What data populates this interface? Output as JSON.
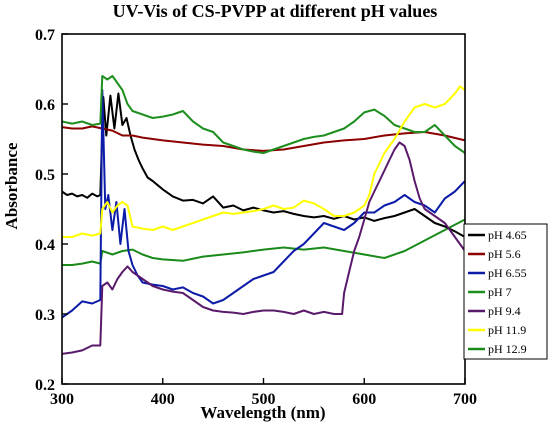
{
  "chart_data": {
    "type": "line",
    "title": "UV-Vis of CS-PVPP at different pH values",
    "xlabel": "Wavelength (nm)",
    "ylabel": "Absorbance",
    "xlim": [
      300,
      700
    ],
    "ylim": [
      0.2,
      0.7
    ],
    "xticks": [
      300,
      400,
      500,
      600,
      700
    ],
    "yticks": [
      0.2,
      0.3,
      0.4,
      0.5,
      0.6,
      0.7
    ],
    "legend_position": "right, outside plot area",
    "grid": false,
    "series": [
      {
        "name": "pH 4.65",
        "color": "#000000",
        "points": [
          [
            300,
            0.475
          ],
          [
            305,
            0.47
          ],
          [
            310,
            0.472
          ],
          [
            315,
            0.468
          ],
          [
            320,
            0.47
          ],
          [
            325,
            0.466
          ],
          [
            330,
            0.472
          ],
          [
            335,
            0.468
          ],
          [
            338,
            0.47
          ],
          [
            341,
            0.61
          ],
          [
            344,
            0.555
          ],
          [
            348,
            0.612
          ],
          [
            352,
            0.565
          ],
          [
            356,
            0.615
          ],
          [
            360,
            0.57
          ],
          [
            364,
            0.58
          ],
          [
            368,
            0.555
          ],
          [
            372,
            0.535
          ],
          [
            376,
            0.52
          ],
          [
            380,
            0.508
          ],
          [
            385,
            0.495
          ],
          [
            390,
            0.49
          ],
          [
            395,
            0.484
          ],
          [
            400,
            0.478
          ],
          [
            410,
            0.468
          ],
          [
            420,
            0.462
          ],
          [
            430,
            0.463
          ],
          [
            440,
            0.458
          ],
          [
            450,
            0.468
          ],
          [
            460,
            0.452
          ],
          [
            470,
            0.455
          ],
          [
            480,
            0.448
          ],
          [
            490,
            0.452
          ],
          [
            500,
            0.448
          ],
          [
            510,
            0.445
          ],
          [
            520,
            0.447
          ],
          [
            530,
            0.443
          ],
          [
            540,
            0.44
          ],
          [
            550,
            0.438
          ],
          [
            560,
            0.44
          ],
          [
            570,
            0.436
          ],
          [
            580,
            0.44
          ],
          [
            590,
            0.435
          ],
          [
            600,
            0.438
          ],
          [
            610,
            0.433
          ],
          [
            620,
            0.437
          ],
          [
            630,
            0.44
          ],
          [
            640,
            0.445
          ],
          [
            650,
            0.45
          ],
          [
            660,
            0.44
          ],
          [
            670,
            0.43
          ],
          [
            680,
            0.425
          ],
          [
            690,
            0.418
          ],
          [
            700,
            0.41
          ]
        ]
      },
      {
        "name": "pH 5.6",
        "color": "#8b0000",
        "points": [
          [
            300,
            0.567
          ],
          [
            310,
            0.565
          ],
          [
            320,
            0.565
          ],
          [
            330,
            0.568
          ],
          [
            340,
            0.565
          ],
          [
            350,
            0.562
          ],
          [
            360,
            0.555
          ],
          [
            370,
            0.555
          ],
          [
            380,
            0.552
          ],
          [
            390,
            0.55
          ],
          [
            400,
            0.548
          ],
          [
            420,
            0.545
          ],
          [
            440,
            0.542
          ],
          [
            460,
            0.54
          ],
          [
            480,
            0.535
          ],
          [
            500,
            0.533
          ],
          [
            520,
            0.535
          ],
          [
            540,
            0.54
          ],
          [
            560,
            0.545
          ],
          [
            580,
            0.548
          ],
          [
            600,
            0.55
          ],
          [
            620,
            0.555
          ],
          [
            640,
            0.558
          ],
          [
            660,
            0.56
          ],
          [
            680,
            0.555
          ],
          [
            700,
            0.548
          ]
        ]
      },
      {
        "name": "pH 6.55",
        "color": "#0d1ca8",
        "points": [
          [
            300,
            0.295
          ],
          [
            310,
            0.305
          ],
          [
            320,
            0.318
          ],
          [
            330,
            0.315
          ],
          [
            338,
            0.32
          ],
          [
            340,
            0.62
          ],
          [
            343,
            0.45
          ],
          [
            346,
            0.47
          ],
          [
            350,
            0.42
          ],
          [
            354,
            0.46
          ],
          [
            358,
            0.4
          ],
          [
            362,
            0.45
          ],
          [
            366,
            0.39
          ],
          [
            370,
            0.37
          ],
          [
            375,
            0.355
          ],
          [
            380,
            0.345
          ],
          [
            390,
            0.342
          ],
          [
            400,
            0.34
          ],
          [
            410,
            0.335
          ],
          [
            420,
            0.338
          ],
          [
            430,
            0.33
          ],
          [
            440,
            0.325
          ],
          [
            450,
            0.315
          ],
          [
            460,
            0.32
          ],
          [
            470,
            0.33
          ],
          [
            480,
            0.34
          ],
          [
            490,
            0.35
          ],
          [
            500,
            0.355
          ],
          [
            510,
            0.36
          ],
          [
            520,
            0.375
          ],
          [
            530,
            0.39
          ],
          [
            540,
            0.4
          ],
          [
            550,
            0.415
          ],
          [
            560,
            0.43
          ],
          [
            570,
            0.425
          ],
          [
            580,
            0.42
          ],
          [
            590,
            0.43
          ],
          [
            600,
            0.445
          ],
          [
            610,
            0.445
          ],
          [
            620,
            0.455
          ],
          [
            630,
            0.46
          ],
          [
            640,
            0.47
          ],
          [
            650,
            0.46
          ],
          [
            660,
            0.455
          ],
          [
            670,
            0.445
          ],
          [
            680,
            0.465
          ],
          [
            690,
            0.475
          ],
          [
            700,
            0.49
          ]
        ]
      },
      {
        "name": "pH 7",
        "color": "#1e8f1e",
        "points": [
          [
            300,
            0.575
          ],
          [
            310,
            0.572
          ],
          [
            320,
            0.575
          ],
          [
            330,
            0.57
          ],
          [
            338,
            0.572
          ],
          [
            340,
            0.64
          ],
          [
            345,
            0.635
          ],
          [
            350,
            0.64
          ],
          [
            355,
            0.63
          ],
          [
            360,
            0.62
          ],
          [
            365,
            0.6
          ],
          [
            370,
            0.59
          ],
          [
            380,
            0.585
          ],
          [
            390,
            0.58
          ],
          [
            400,
            0.582
          ],
          [
            410,
            0.585
          ],
          [
            420,
            0.59
          ],
          [
            430,
            0.575
          ],
          [
            440,
            0.565
          ],
          [
            450,
            0.56
          ],
          [
            460,
            0.545
          ],
          [
            470,
            0.54
          ],
          [
            480,
            0.535
          ],
          [
            490,
            0.532
          ],
          [
            500,
            0.53
          ],
          [
            510,
            0.535
          ],
          [
            520,
            0.54
          ],
          [
            530,
            0.545
          ],
          [
            540,
            0.55
          ],
          [
            550,
            0.553
          ],
          [
            560,
            0.555
          ],
          [
            570,
            0.56
          ],
          [
            580,
            0.565
          ],
          [
            590,
            0.575
          ],
          [
            600,
            0.588
          ],
          [
            605,
            0.59
          ],
          [
            610,
            0.592
          ],
          [
            620,
            0.583
          ],
          [
            630,
            0.57
          ],
          [
            640,
            0.565
          ],
          [
            650,
            0.56
          ],
          [
            660,
            0.56
          ],
          [
            670,
            0.57
          ],
          [
            680,
            0.555
          ],
          [
            690,
            0.54
          ],
          [
            700,
            0.53
          ]
        ]
      },
      {
        "name": "pH 9.4",
        "color": "#5a1a6b",
        "points": [
          [
            300,
            0.243
          ],
          [
            310,
            0.245
          ],
          [
            320,
            0.248
          ],
          [
            330,
            0.255
          ],
          [
            338,
            0.255
          ],
          [
            340,
            0.34
          ],
          [
            345,
            0.345
          ],
          [
            350,
            0.335
          ],
          [
            355,
            0.35
          ],
          [
            360,
            0.36
          ],
          [
            365,
            0.368
          ],
          [
            370,
            0.36
          ],
          [
            375,
            0.355
          ],
          [
            380,
            0.35
          ],
          [
            390,
            0.34
          ],
          [
            400,
            0.335
          ],
          [
            410,
            0.332
          ],
          [
            420,
            0.33
          ],
          [
            430,
            0.32
          ],
          [
            440,
            0.31
          ],
          [
            450,
            0.305
          ],
          [
            460,
            0.303
          ],
          [
            470,
            0.302
          ],
          [
            480,
            0.3
          ],
          [
            490,
            0.303
          ],
          [
            500,
            0.305
          ],
          [
            510,
            0.305
          ],
          [
            520,
            0.303
          ],
          [
            530,
            0.3
          ],
          [
            540,
            0.305
          ],
          [
            550,
            0.3
          ],
          [
            560,
            0.303
          ],
          [
            570,
            0.3
          ],
          [
            578,
            0.3
          ],
          [
            580,
            0.33
          ],
          [
            585,
            0.36
          ],
          [
            590,
            0.39
          ],
          [
            595,
            0.41
          ],
          [
            600,
            0.435
          ],
          [
            605,
            0.46
          ],
          [
            610,
            0.475
          ],
          [
            615,
            0.49
          ],
          [
            620,
            0.505
          ],
          [
            625,
            0.52
          ],
          [
            630,
            0.535
          ],
          [
            635,
            0.545
          ],
          [
            640,
            0.54
          ],
          [
            645,
            0.52
          ],
          [
            650,
            0.49
          ],
          [
            655,
            0.465
          ],
          [
            660,
            0.45
          ],
          [
            670,
            0.44
          ],
          [
            680,
            0.43
          ],
          [
            690,
            0.41
          ],
          [
            700,
            0.39
          ]
        ]
      },
      {
        "name": "pH 11.9",
        "color": "#ffff00",
        "points": [
          [
            300,
            0.41
          ],
          [
            310,
            0.41
          ],
          [
            320,
            0.415
          ],
          [
            330,
            0.412
          ],
          [
            338,
            0.415
          ],
          [
            340,
            0.45
          ],
          [
            345,
            0.46
          ],
          [
            350,
            0.445
          ],
          [
            355,
            0.455
          ],
          [
            360,
            0.46
          ],
          [
            365,
            0.455
          ],
          [
            370,
            0.425
          ],
          [
            380,
            0.422
          ],
          [
            390,
            0.42
          ],
          [
            400,
            0.425
          ],
          [
            410,
            0.42
          ],
          [
            420,
            0.425
          ],
          [
            430,
            0.43
          ],
          [
            440,
            0.435
          ],
          [
            450,
            0.44
          ],
          [
            460,
            0.445
          ],
          [
            470,
            0.443
          ],
          [
            480,
            0.445
          ],
          [
            490,
            0.447
          ],
          [
            500,
            0.45
          ],
          [
            510,
            0.455
          ],
          [
            520,
            0.45
          ],
          [
            530,
            0.452
          ],
          [
            540,
            0.462
          ],
          [
            550,
            0.458
          ],
          [
            560,
            0.45
          ],
          [
            570,
            0.44
          ],
          [
            580,
            0.44
          ],
          [
            590,
            0.445
          ],
          [
            600,
            0.455
          ],
          [
            605,
            0.47
          ],
          [
            610,
            0.5
          ],
          [
            615,
            0.515
          ],
          [
            620,
            0.53
          ],
          [
            630,
            0.55
          ],
          [
            640,
            0.575
          ],
          [
            650,
            0.595
          ],
          [
            660,
            0.6
          ],
          [
            670,
            0.595
          ],
          [
            680,
            0.6
          ],
          [
            690,
            0.615
          ],
          [
            695,
            0.625
          ],
          [
            700,
            0.62
          ]
        ]
      },
      {
        "name": "pH 12.9",
        "color": "#1a8a1a",
        "points": [
          [
            300,
            0.37
          ],
          [
            310,
            0.37
          ],
          [
            320,
            0.372
          ],
          [
            330,
            0.375
          ],
          [
            338,
            0.372
          ],
          [
            340,
            0.39
          ],
          [
            350,
            0.385
          ],
          [
            360,
            0.39
          ],
          [
            370,
            0.392
          ],
          [
            380,
            0.385
          ],
          [
            390,
            0.38
          ],
          [
            400,
            0.378
          ],
          [
            420,
            0.376
          ],
          [
            440,
            0.382
          ],
          [
            460,
            0.385
          ],
          [
            480,
            0.388
          ],
          [
            500,
            0.392
          ],
          [
            520,
            0.395
          ],
          [
            540,
            0.392
          ],
          [
            560,
            0.395
          ],
          [
            580,
            0.39
          ],
          [
            600,
            0.385
          ],
          [
            620,
            0.38
          ],
          [
            640,
            0.39
          ],
          [
            660,
            0.405
          ],
          [
            680,
            0.42
          ],
          [
            700,
            0.435
          ]
        ]
      }
    ]
  }
}
